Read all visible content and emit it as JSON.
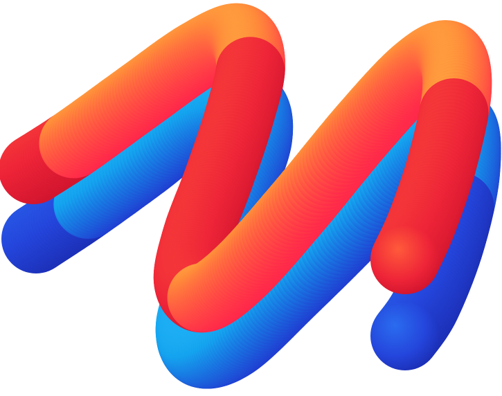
{
  "artwork": {
    "subject": "two-tube-zigzag-illustration",
    "tubes": [
      {
        "name": "back-tube",
        "colors": {
          "start": "#2a3bd6",
          "mid": "#12b4ee",
          "end": "#2b3fd3"
        }
      },
      {
        "name": "front-tube",
        "colors": {
          "start": "#ff1f55",
          "mid": "#ff9a3c",
          "end": "#e81c2f"
        }
      }
    ]
  }
}
